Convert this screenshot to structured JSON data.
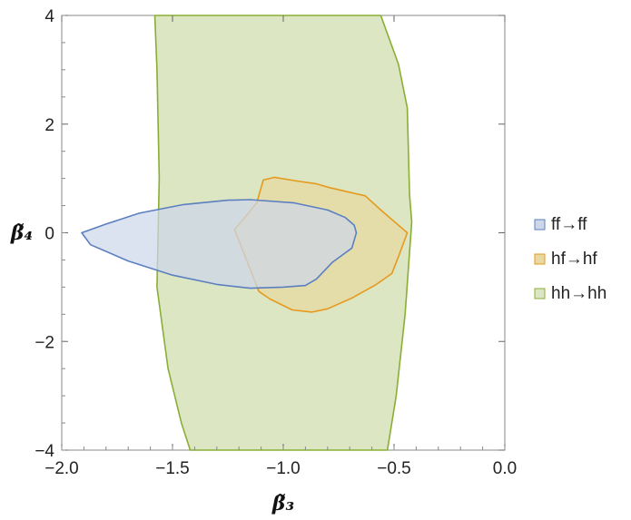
{
  "chart_data": {
    "type": "area",
    "x": [
      -2.0,
      -1.5,
      -1.0,
      -0.5,
      0.0
    ],
    "xlim": [
      -2.0,
      0.0
    ],
    "ylim": [
      -4,
      4
    ],
    "xticks": [
      -2.0,
      -1.5,
      -1.0,
      -0.5,
      0.0
    ],
    "xtick_labels": [
      "−2.0",
      "−1.5",
      "−1.0",
      "−0.5",
      "0.0"
    ],
    "yticks": [
      -4,
      -2,
      0,
      2,
      4
    ],
    "ytick_labels": [
      "−4",
      "−2",
      "0",
      "2",
      "4"
    ],
    "xlabel": "β̃₃",
    "ylabel": "β̃₄",
    "legend_position": "right",
    "grid": false,
    "series": [
      {
        "name": "ff→ff",
        "fill": "#cdd7ea",
        "stroke": "#5b7fc0",
        "points": [
          [
            -1.91,
            0.0
          ],
          [
            -1.87,
            -0.22
          ],
          [
            -1.7,
            -0.52
          ],
          [
            -1.5,
            -0.78
          ],
          [
            -1.3,
            -0.95
          ],
          [
            -1.15,
            -1.02
          ],
          [
            -1.0,
            -1.0
          ],
          [
            -0.9,
            -0.97
          ],
          [
            -0.85,
            -0.85
          ],
          [
            -0.78,
            -0.55
          ],
          [
            -0.69,
            -0.28
          ],
          [
            -0.67,
            0.0
          ],
          [
            -0.68,
            0.14
          ],
          [
            -0.72,
            0.28
          ],
          [
            -0.8,
            0.42
          ],
          [
            -0.95,
            0.55
          ],
          [
            -1.15,
            0.61
          ],
          [
            -1.25,
            0.6
          ],
          [
            -1.45,
            0.52
          ],
          [
            -1.65,
            0.36
          ],
          [
            -1.8,
            0.16
          ],
          [
            -1.91,
            0.0
          ]
        ]
      },
      {
        "name": "hf→hf",
        "fill": "#e9d9a0",
        "stroke": "#e59a1e",
        "points": [
          [
            -1.22,
            0.06
          ],
          [
            -1.18,
            0.25
          ],
          [
            -1.12,
            0.55
          ],
          [
            -1.09,
            0.97
          ],
          [
            -1.04,
            1.02
          ],
          [
            -0.95,
            0.96
          ],
          [
            -0.85,
            0.9
          ],
          [
            -0.79,
            0.83
          ],
          [
            -0.63,
            0.68
          ],
          [
            -0.56,
            0.42
          ],
          [
            -0.44,
            0.0
          ],
          [
            -0.48,
            -0.44
          ],
          [
            -0.51,
            -0.75
          ],
          [
            -0.58,
            -0.95
          ],
          [
            -0.69,
            -1.2
          ],
          [
            -0.8,
            -1.4
          ],
          [
            -0.87,
            -1.46
          ],
          [
            -0.96,
            -1.42
          ],
          [
            -1.06,
            -1.22
          ],
          [
            -1.11,
            -1.08
          ],
          [
            -1.22,
            0.06
          ]
        ]
      },
      {
        "name": "hh→hh",
        "fill": "#dce6c3",
        "stroke": "#8aae35",
        "points": [
          [
            -1.58,
            4.0
          ],
          [
            -1.57,
            3.0
          ],
          [
            -1.56,
            1.0
          ],
          [
            -1.57,
            -1.0
          ],
          [
            -1.52,
            -2.5
          ],
          [
            -1.46,
            -3.5
          ],
          [
            -1.42,
            -4.0
          ],
          [
            -0.53,
            -4.0
          ],
          [
            -0.49,
            -3.0
          ],
          [
            -0.45,
            -1.5
          ],
          [
            -0.42,
            0.2
          ],
          [
            -0.43,
            0.7
          ],
          [
            -0.44,
            2.3
          ],
          [
            -0.48,
            3.1
          ],
          [
            -0.56,
            4.0
          ],
          [
            -1.58,
            4.0
          ]
        ]
      }
    ]
  }
}
